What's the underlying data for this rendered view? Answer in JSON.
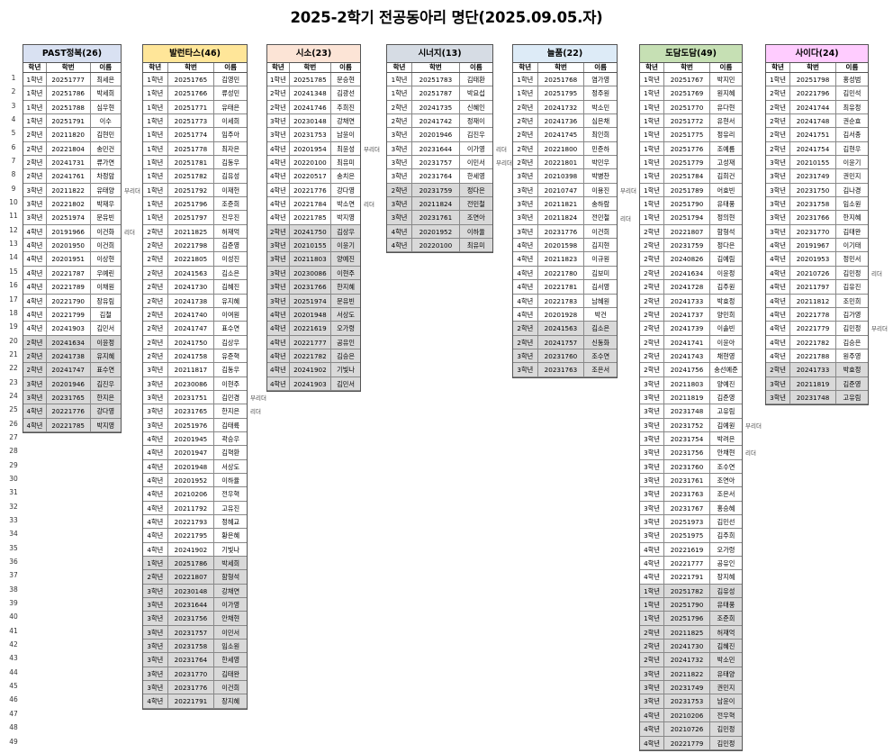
{
  "title": "2025-2학기 전공동아리 명단(2025.09.05.자)",
  "columns": [
    "학년",
    "학번",
    "이름"
  ],
  "row_count": 49,
  "highlight_color": "#d9d9d9",
  "clubs": [
    {
      "name": "PAST정복(26)",
      "color": "#d9e1f2",
      "highlight_from": 20,
      "roles": [
        {
          "row": 9,
          "label": "부리더"
        },
        {
          "row": 12,
          "label": "리더"
        }
      ],
      "rows": [
        [
          "1학년",
          "20251777",
          "최세은"
        ],
        [
          "1학년",
          "20251786",
          "박세희"
        ],
        [
          "1학년",
          "20251788",
          "심우현"
        ],
        [
          "1학년",
          "20251791",
          "이수"
        ],
        [
          "2학년",
          "20211820",
          "김현민"
        ],
        [
          "2학년",
          "20221804",
          "송민건"
        ],
        [
          "2학년",
          "20241731",
          "류가연"
        ],
        [
          "2학년",
          "20241761",
          "차정암"
        ],
        [
          "3학년",
          "20211822",
          "유태양"
        ],
        [
          "3학년",
          "20221802",
          "박재우"
        ],
        [
          "3학년",
          "20251974",
          "문유빈"
        ],
        [
          "4학년",
          "20191966",
          "이건화"
        ],
        [
          "4학년",
          "20201950",
          "이건희"
        ],
        [
          "4학년",
          "20201951",
          "이상현"
        ],
        [
          "4학년",
          "20221787",
          "우예린"
        ],
        [
          "4학년",
          "20221789",
          "이채원"
        ],
        [
          "4학년",
          "20221790",
          "장유림"
        ],
        [
          "4학년",
          "20221799",
          "김철"
        ],
        [
          "4학년",
          "20241903",
          "김민서"
        ],
        [
          "2학년",
          "20241634",
          "이윤정"
        ],
        [
          "2학년",
          "20241738",
          "유지혜"
        ],
        [
          "2학년",
          "20241747",
          "표수연"
        ],
        [
          "3학년",
          "20201946",
          "김진우"
        ],
        [
          "3학년",
          "20231765",
          "한지은"
        ],
        [
          "4학년",
          "20221776",
          "강다영"
        ],
        [
          "4학년",
          "20221785",
          "박지영"
        ]
      ]
    },
    {
      "name": "발런타스(46)",
      "color": "#ffe699",
      "highlight_from": 36,
      "roles": [
        {
          "row": 24,
          "label": "부리더"
        },
        {
          "row": 25,
          "label": "리더"
        }
      ],
      "rows": [
        [
          "1학년",
          "20251765",
          "김영민"
        ],
        [
          "1학년",
          "20251766",
          "류성민"
        ],
        [
          "1학년",
          "20251771",
          "유태은"
        ],
        [
          "1학년",
          "20251773",
          "이세희"
        ],
        [
          "1학년",
          "20251774",
          "임주아"
        ],
        [
          "1학년",
          "20251778",
          "최자은"
        ],
        [
          "1학년",
          "20251781",
          "김동우"
        ],
        [
          "1학년",
          "20251782",
          "김유성"
        ],
        [
          "1학년",
          "20251792",
          "이재헌"
        ],
        [
          "1학년",
          "20251796",
          "조준희"
        ],
        [
          "1학년",
          "20251797",
          "진우진"
        ],
        [
          "2학년",
          "20211825",
          "허재억"
        ],
        [
          "2학년",
          "20221798",
          "김준영"
        ],
        [
          "2학년",
          "20221805",
          "이성진"
        ],
        [
          "2학년",
          "20241563",
          "김소은"
        ],
        [
          "2학년",
          "20241730",
          "김혜진"
        ],
        [
          "2학년",
          "20241738",
          "유지혜"
        ],
        [
          "2학년",
          "20241740",
          "이여원"
        ],
        [
          "2학년",
          "20241747",
          "표수연"
        ],
        [
          "2학년",
          "20241750",
          "김상우"
        ],
        [
          "2학년",
          "20241758",
          "유준혁"
        ],
        [
          "3학년",
          "20211817",
          "김동우"
        ],
        [
          "3학년",
          "20230086",
          "이현주"
        ],
        [
          "3학년",
          "20231751",
          "김민경"
        ],
        [
          "3학년",
          "20231765",
          "한지은"
        ],
        [
          "3학년",
          "20251976",
          "김태륙"
        ],
        [
          "4학년",
          "20201945",
          "곽승우"
        ],
        [
          "4학년",
          "20201947",
          "김혁환"
        ],
        [
          "4학년",
          "20201948",
          "서상도"
        ],
        [
          "4학년",
          "20201952",
          "이하율"
        ],
        [
          "4학년",
          "20210206",
          "전우혁"
        ],
        [
          "4학년",
          "20211792",
          "고유진"
        ],
        [
          "4학년",
          "20221793",
          "정혜교"
        ],
        [
          "4학년",
          "20221795",
          "황은혜"
        ],
        [
          "4학년",
          "20241902",
          "기빛나"
        ],
        [
          "1학년",
          "20251786",
          "박세희"
        ],
        [
          "2학년",
          "20221807",
          "함형석"
        ],
        [
          "3학년",
          "20230148",
          "강채연"
        ],
        [
          "3학년",
          "20231644",
          "이가영"
        ],
        [
          "3학년",
          "20231756",
          "안채현"
        ],
        [
          "3학년",
          "20231757",
          "이민서"
        ],
        [
          "3학년",
          "20231758",
          "임소원"
        ],
        [
          "3학년",
          "20231764",
          "한세영"
        ],
        [
          "3학년",
          "20231770",
          "김태완"
        ],
        [
          "3학년",
          "20231776",
          "이건희"
        ],
        [
          "4학년",
          "20221791",
          "장지혜"
        ]
      ]
    },
    {
      "name": "시소(23)",
      "color": "#fce4d6",
      "highlight_from": 12,
      "roles": [
        {
          "row": 6,
          "label": "부리더"
        },
        {
          "row": 10,
          "label": "리더"
        }
      ],
      "rows": [
        [
          "1학년",
          "20251785",
          "문승현"
        ],
        [
          "2학년",
          "20241348",
          "김광선"
        ],
        [
          "2학년",
          "20241746",
          "추희진"
        ],
        [
          "3학년",
          "20230148",
          "강채연"
        ],
        [
          "3학년",
          "20231753",
          "남윤이"
        ],
        [
          "4학년",
          "20201954",
          "최윤성"
        ],
        [
          "4학년",
          "20220100",
          "최유미"
        ],
        [
          "4학년",
          "20220517",
          "송치은"
        ],
        [
          "4학년",
          "20221776",
          "강다영"
        ],
        [
          "4학년",
          "20221784",
          "박소연"
        ],
        [
          "4학년",
          "20221785",
          "박지영"
        ],
        [
          "2학년",
          "20241750",
          "김상우"
        ],
        [
          "3학년",
          "20210155",
          "이윤기"
        ],
        [
          "3학년",
          "20211803",
          "양예진"
        ],
        [
          "3학년",
          "20230086",
          "이현주"
        ],
        [
          "3학년",
          "20231766",
          "한지혜"
        ],
        [
          "3학년",
          "20251974",
          "문유빈"
        ],
        [
          "4학년",
          "20201948",
          "서상도"
        ],
        [
          "4학년",
          "20221619",
          "오가령"
        ],
        [
          "4학년",
          "20221777",
          "공유인"
        ],
        [
          "4학년",
          "20221782",
          "김승은"
        ],
        [
          "4학년",
          "20241902",
          "기빛나"
        ],
        [
          "4학년",
          "20241903",
          "김민서"
        ]
      ]
    },
    {
      "name": "시너지(13)",
      "color": "#d6dce4",
      "highlight_from": 9,
      "roles": [
        {
          "row": 6,
          "label": "리더"
        },
        {
          "row": 7,
          "label": "부리더"
        }
      ],
      "rows": [
        [
          "1학년",
          "20251783",
          "김태환"
        ],
        [
          "1학년",
          "20251787",
          "박요섭"
        ],
        [
          "2학년",
          "20241735",
          "신혜인"
        ],
        [
          "2학년",
          "20241742",
          "정재이"
        ],
        [
          "3학년",
          "20201946",
          "김진우"
        ],
        [
          "3학년",
          "20231644",
          "이가영"
        ],
        [
          "3학년",
          "20231757",
          "이민서"
        ],
        [
          "3학년",
          "20231764",
          "한세영"
        ],
        [
          "2학년",
          "20231759",
          "정다은"
        ],
        [
          "3학년",
          "20211824",
          "전민철"
        ],
        [
          "3학년",
          "20231761",
          "조연아"
        ],
        [
          "4학년",
          "20201952",
          "이하율"
        ],
        [
          "4학년",
          "20220100",
          "최유미"
        ]
      ]
    },
    {
      "name": "늘품(22)",
      "color": "#ddebf7",
      "highlight_from": 19,
      "roles": [
        {
          "row": 9,
          "label": "부리더"
        },
        {
          "row": 11,
          "label": "리더"
        }
      ],
      "rows": [
        [
          "1학년",
          "20251768",
          "염가영"
        ],
        [
          "1학년",
          "20251795",
          "정주원"
        ],
        [
          "2학년",
          "20241732",
          "박소민"
        ],
        [
          "2학년",
          "20241736",
          "심은채"
        ],
        [
          "2학년",
          "20241745",
          "최인희"
        ],
        [
          "2학년",
          "20221800",
          "민준하"
        ],
        [
          "2학년",
          "20221801",
          "박민우"
        ],
        [
          "3학년",
          "20210398",
          "박병찬"
        ],
        [
          "3학년",
          "20210747",
          "이용진"
        ],
        [
          "3학년",
          "20211821",
          "송하람"
        ],
        [
          "3학년",
          "20211824",
          "전민철"
        ],
        [
          "3학년",
          "20231776",
          "이건희"
        ],
        [
          "4학년",
          "20201598",
          "김지현"
        ],
        [
          "4학년",
          "20211823",
          "이규원"
        ],
        [
          "4학년",
          "20221780",
          "김보미"
        ],
        [
          "4학년",
          "20221781",
          "김서영"
        ],
        [
          "4학년",
          "20221783",
          "남혜원"
        ],
        [
          "4학년",
          "20201928",
          "박건"
        ],
        [
          "2학년",
          "20241563",
          "김소은"
        ],
        [
          "2학년",
          "20241757",
          "신동화"
        ],
        [
          "3학년",
          "20231760",
          "조수연"
        ],
        [
          "3학년",
          "20231763",
          "조은서"
        ]
      ]
    },
    {
      "name": "도담도담(49)",
      "color": "#c6e0b4",
      "highlight_from": 38,
      "roles": [
        {
          "row": 26,
          "label": "부리더"
        },
        {
          "row": 28,
          "label": "리더"
        }
      ],
      "rows": [
        [
          "1학년",
          "20251767",
          "박지민"
        ],
        [
          "1학년",
          "20251769",
          "원지혜"
        ],
        [
          "1학년",
          "20251770",
          "유다현"
        ],
        [
          "1학년",
          "20251772",
          "유현서"
        ],
        [
          "1학년",
          "20251775",
          "정유리"
        ],
        [
          "1학년",
          "20251776",
          "조예름"
        ],
        [
          "1학년",
          "20251779",
          "고성재"
        ],
        [
          "1학년",
          "20251784",
          "김희건"
        ],
        [
          "1학년",
          "20251789",
          "어효빈"
        ],
        [
          "1학년",
          "20251790",
          "유태풍"
        ],
        [
          "1학년",
          "20251794",
          "정의현"
        ],
        [
          "2학년",
          "20221807",
          "함형석"
        ],
        [
          "2학년",
          "20231759",
          "정다은"
        ],
        [
          "2학년",
          "20240826",
          "김예림"
        ],
        [
          "2학년",
          "20241634",
          "이윤정"
        ],
        [
          "2학년",
          "20241728",
          "김주원"
        ],
        [
          "2학년",
          "20241733",
          "박효정"
        ],
        [
          "2학년",
          "20241737",
          "양민희"
        ],
        [
          "2학년",
          "20241739",
          "이솔빈"
        ],
        [
          "2학년",
          "20241741",
          "이윤아"
        ],
        [
          "2학년",
          "20241743",
          "채현영"
        ],
        [
          "2학년",
          "20241756",
          "송선예준"
        ],
        [
          "3학년",
          "20211803",
          "양예진"
        ],
        [
          "3학년",
          "20211819",
          "김준영"
        ],
        [
          "3학년",
          "20231748",
          "고유림"
        ],
        [
          "3학년",
          "20231752",
          "김예원"
        ],
        [
          "3학년",
          "20231754",
          "박려은"
        ],
        [
          "3학년",
          "20231756",
          "안채현"
        ],
        [
          "3학년",
          "20231760",
          "조수연"
        ],
        [
          "3학년",
          "20231761",
          "조연아"
        ],
        [
          "3학년",
          "20231763",
          "조은서"
        ],
        [
          "3학년",
          "20231767",
          "홍승혜"
        ],
        [
          "3학년",
          "20251973",
          "김민선"
        ],
        [
          "3학년",
          "20251975",
          "김주희"
        ],
        [
          "4학년",
          "20221619",
          "오가령"
        ],
        [
          "4학년",
          "20221777",
          "공유인"
        ],
        [
          "4학년",
          "20221791",
          "장지혜"
        ],
        [
          "1학년",
          "20251782",
          "김유성"
        ],
        [
          "1학년",
          "20251790",
          "유태풍"
        ],
        [
          "1학년",
          "20251796",
          "조준희"
        ],
        [
          "2학년",
          "20211825",
          "허재억"
        ],
        [
          "2학년",
          "20241730",
          "김혜진"
        ],
        [
          "2학년",
          "20241732",
          "박소민"
        ],
        [
          "3학년",
          "20211822",
          "유태양"
        ],
        [
          "3학년",
          "20231749",
          "권민지"
        ],
        [
          "3학년",
          "20231753",
          "남윤이"
        ],
        [
          "4학년",
          "20210206",
          "전우혁"
        ],
        [
          "4학년",
          "20210726",
          "김민정"
        ],
        [
          "4학년",
          "20221779",
          "김민정"
        ]
      ]
    },
    {
      "name": "사이다(24)",
      "color": "#ffccff",
      "highlight_from": 22,
      "roles": [
        {
          "row": 15,
          "label": "리더"
        },
        {
          "row": 19,
          "label": "부리더"
        }
      ],
      "rows": [
        [
          "1학년",
          "20251798",
          "홍성범"
        ],
        [
          "2학년",
          "20221796",
          "김민석"
        ],
        [
          "2학년",
          "20241744",
          "최유정"
        ],
        [
          "2학년",
          "20241748",
          "권순효"
        ],
        [
          "2학년",
          "20241751",
          "김서종"
        ],
        [
          "2학년",
          "20241754",
          "김현우"
        ],
        [
          "3학년",
          "20210155",
          "이윤기"
        ],
        [
          "3학년",
          "20231749",
          "권민지"
        ],
        [
          "3학년",
          "20231750",
          "김나경"
        ],
        [
          "3학년",
          "20231758",
          "임소원"
        ],
        [
          "3학년",
          "20231766",
          "한지혜"
        ],
        [
          "3학년",
          "20231770",
          "김태완"
        ],
        [
          "4학년",
          "20191967",
          "이기태"
        ],
        [
          "4학년",
          "20201953",
          "정민서"
        ],
        [
          "4학년",
          "20210726",
          "김민정"
        ],
        [
          "4학년",
          "20211797",
          "김유진"
        ],
        [
          "4학년",
          "20211812",
          "조민희"
        ],
        [
          "4학년",
          "20221778",
          "김가영"
        ],
        [
          "4학년",
          "20221779",
          "김민정"
        ],
        [
          "4학년",
          "20221782",
          "김승은"
        ],
        [
          "4학년",
          "20221788",
          "원주영"
        ],
        [
          "2학년",
          "20241733",
          "박효정"
        ],
        [
          "3학년",
          "20211819",
          "김준영"
        ],
        [
          "3학년",
          "20231748",
          "고유림"
        ]
      ]
    }
  ]
}
